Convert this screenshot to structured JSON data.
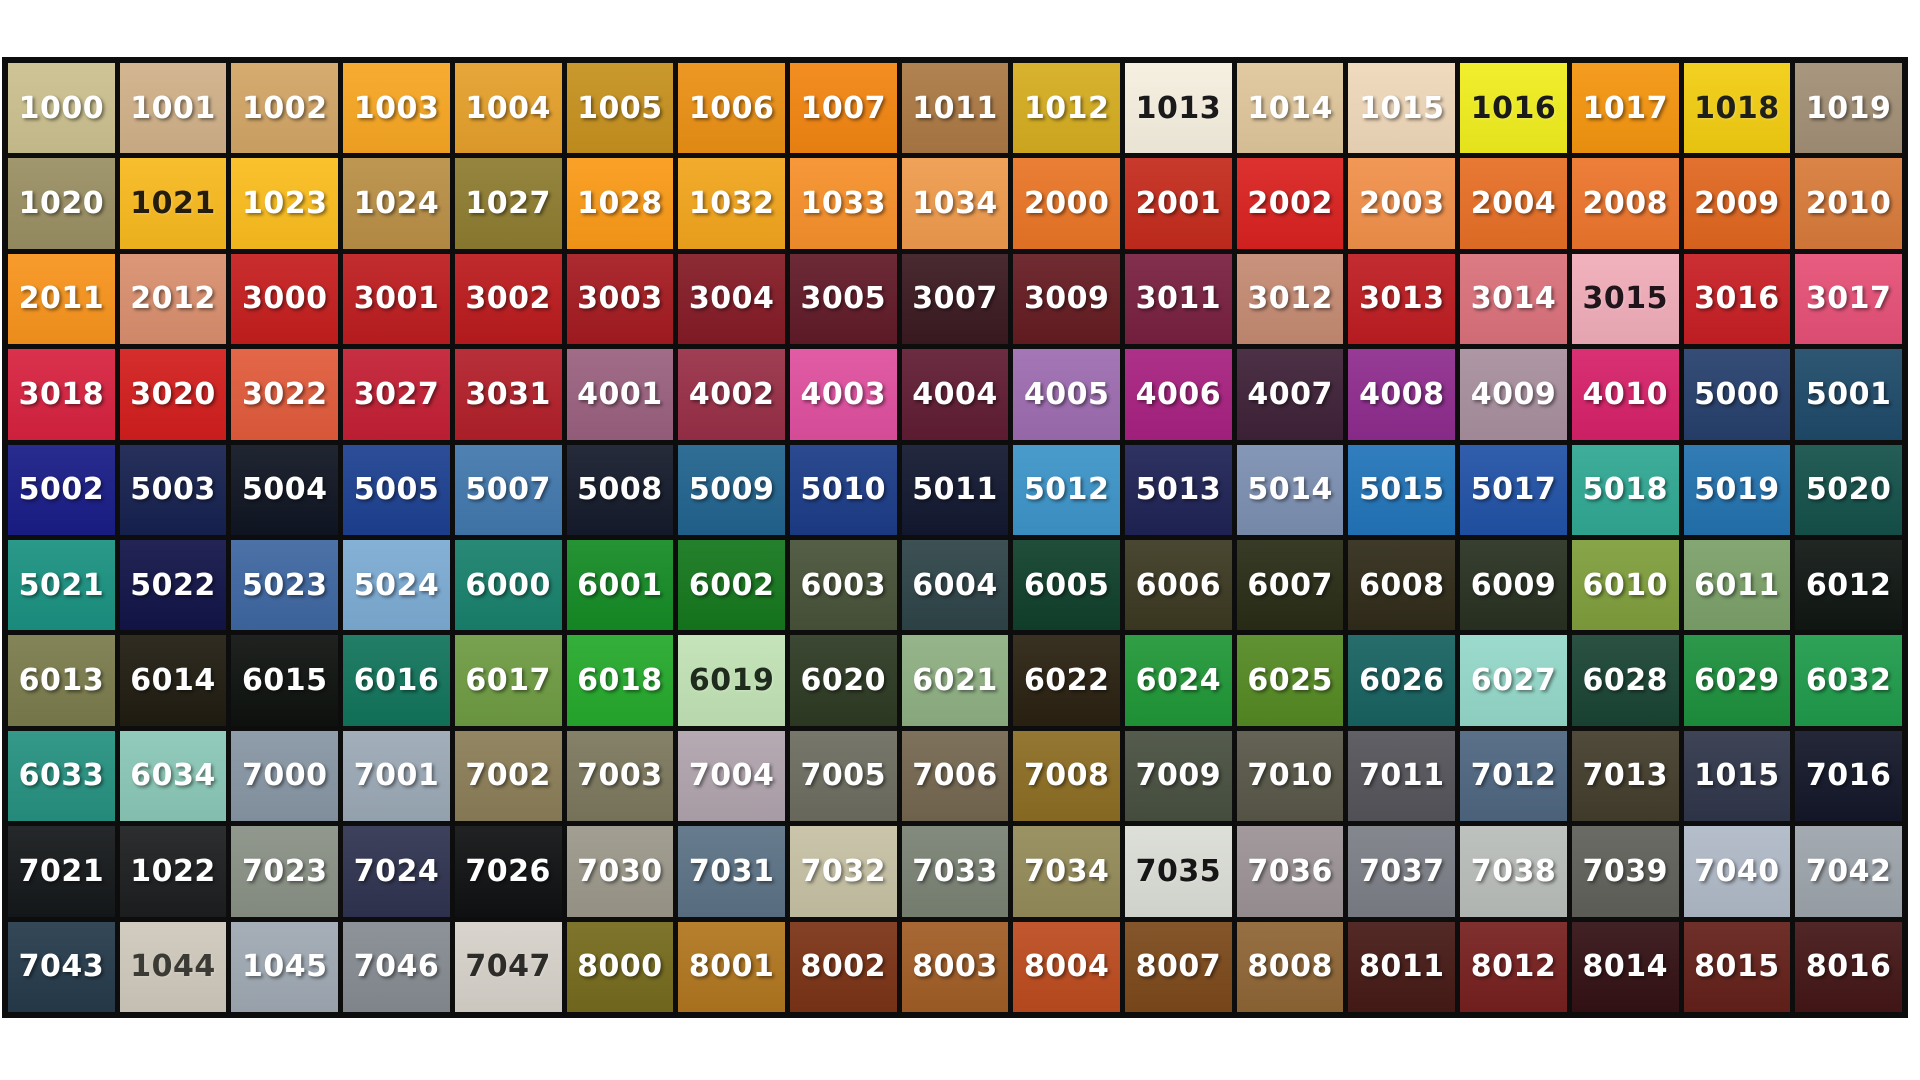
{
  "page": {
    "background_color": "#FFFFFF",
    "frame_color": "#0D0D0D",
    "columns": 17,
    "rows": 10,
    "default_label_color": "#FFFFFF"
  },
  "chart_data": {
    "type": "table",
    "cells": [
      [
        {
          "code": "1000",
          "color": "#CBC08F"
        },
        {
          "code": "1001",
          "color": "#D0B189"
        },
        {
          "code": "1002",
          "color": "#D2A566"
        },
        {
          "code": "1003",
          "color": "#F7A622"
        },
        {
          "code": "1004",
          "color": "#E5A02B"
        },
        {
          "code": "1005",
          "color": "#C6911E"
        },
        {
          "code": "1006",
          "color": "#EB9015"
        },
        {
          "code": "1007",
          "color": "#F28511"
        },
        {
          "code": "1011",
          "color": "#AB7944"
        },
        {
          "code": "1012",
          "color": "#D5AD20"
        },
        {
          "code": "1013",
          "color": "#F5EFDF",
          "fg": "#1A1A1A"
        },
        {
          "code": "1014",
          "color": "#DFC69B"
        },
        {
          "code": "1015",
          "color": "#EFD8BA"
        },
        {
          "code": "1016",
          "color": "#F0EE1E",
          "fg": "#1A1A1A"
        },
        {
          "code": "1017",
          "color": "#F4950F"
        },
        {
          "code": "1018",
          "color": "#F2CD11",
          "fg": "#20201A"
        },
        {
          "code": "1019",
          "color": "#A28F76"
        }
      ],
      [
        {
          "code": "1020",
          "color": "#9A8F63"
        },
        {
          "code": "1021",
          "color": "#F7B91E",
          "fg": "#241C0C"
        },
        {
          "code": "1023",
          "color": "#FBBD1E"
        },
        {
          "code": "1024",
          "color": "#B98F46"
        },
        {
          "code": "1027",
          "color": "#8D7C30"
        },
        {
          "code": "1028",
          "color": "#FA9A17"
        },
        {
          "code": "1032",
          "color": "#F2A51D"
        },
        {
          "code": "1033",
          "color": "#F6902B"
        },
        {
          "code": "1034",
          "color": "#EF9B4D"
        },
        {
          "code": "2000",
          "color": "#E97526"
        },
        {
          "code": "2001",
          "color": "#C42B1D"
        },
        {
          "code": "2002",
          "color": "#DA2220"
        },
        {
          "code": "2003",
          "color": "#F1904A"
        },
        {
          "code": "2004",
          "color": "#E66F26"
        },
        {
          "code": "2008",
          "color": "#EC752C"
        },
        {
          "code": "2009",
          "color": "#E0661F"
        },
        {
          "code": "2010",
          "color": "#D87B3B"
        }
      ],
      [
        {
          "code": "2011",
          "color": "#F7941D"
        },
        {
          "code": "2012",
          "color": "#D98F6E"
        },
        {
          "code": "3000",
          "color": "#C51E1E"
        },
        {
          "code": "3001",
          "color": "#BD1D20"
        },
        {
          "code": "3002",
          "color": "#BB1B1E"
        },
        {
          "code": "3003",
          "color": "#A41B21"
        },
        {
          "code": "3004",
          "color": "#841B26"
        },
        {
          "code": "3005",
          "color": "#611A28"
        },
        {
          "code": "3007",
          "color": "#3B1A21"
        },
        {
          "code": "3009",
          "color": "#651C22"
        },
        {
          "code": "3011",
          "color": "#782040"
        },
        {
          "code": "3012",
          "color": "#C48A72"
        },
        {
          "code": "3013",
          "color": "#BE1D22"
        },
        {
          "code": "3014",
          "color": "#DA717B"
        },
        {
          "code": "3015",
          "color": "#F0ACB9",
          "fg": "#20151A"
        },
        {
          "code": "3016",
          "color": "#C71F24"
        },
        {
          "code": "3017",
          "color": "#E65077"
        }
      ],
      [
        {
          "code": "3018",
          "color": "#D72240"
        },
        {
          "code": "3020",
          "color": "#D21E1D"
        },
        {
          "code": "3022",
          "color": "#E15B3B"
        },
        {
          "code": "3027",
          "color": "#C31F34"
        },
        {
          "code": "3031",
          "color": "#B2202A"
        },
        {
          "code": "4001",
          "color": "#9A617F"
        },
        {
          "code": "4002",
          "color": "#982F47"
        },
        {
          "code": "4003",
          "color": "#DF4F9E"
        },
        {
          "code": "4004",
          "color": "#601C33"
        },
        {
          "code": "4005",
          "color": "#9D6CB0"
        },
        {
          "code": "4006",
          "color": "#A72180"
        },
        {
          "code": "4007",
          "color": "#3F2238"
        },
        {
          "code": "4008",
          "color": "#8E2C8E"
        },
        {
          "code": "4009",
          "color": "#A88F9E"
        },
        {
          "code": "4010",
          "color": "#D62169"
        },
        {
          "code": "5000",
          "color": "#26406C"
        },
        {
          "code": "5001",
          "color": "#1E4A69"
        }
      ],
      [
        {
          "code": "5002",
          "color": "#191C86"
        },
        {
          "code": "5003",
          "color": "#16214F"
        },
        {
          "code": "5004",
          "color": "#101523"
        },
        {
          "code": "5005",
          "color": "#1D4090"
        },
        {
          "code": "5007",
          "color": "#4278AD"
        },
        {
          "code": "5008",
          "color": "#151B2B"
        },
        {
          "code": "5009",
          "color": "#21638E"
        },
        {
          "code": "5010",
          "color": "#1C3C87"
        },
        {
          "code": "5011",
          "color": "#121830"
        },
        {
          "code": "5012",
          "color": "#3C94C8"
        },
        {
          "code": "5013",
          "color": "#1F2355"
        },
        {
          "code": "5014",
          "color": "#7C8FB1"
        },
        {
          "code": "5015",
          "color": "#2274B9"
        },
        {
          "code": "5017",
          "color": "#2152A6"
        },
        {
          "code": "5018",
          "color": "#30A893"
        },
        {
          "code": "5019",
          "color": "#2372AF"
        },
        {
          "code": "5020",
          "color": "#14514A"
        }
      ],
      [
        {
          "code": "5021",
          "color": "#1A9181"
        },
        {
          "code": "5022",
          "color": "#121448"
        },
        {
          "code": "5023",
          "color": "#3E67A1"
        },
        {
          "code": "5024",
          "color": "#7CABD3"
        },
        {
          "code": "6000",
          "color": "#18816C"
        },
        {
          "code": "6001",
          "color": "#158B25"
        },
        {
          "code": "6002",
          "color": "#15771D"
        },
        {
          "code": "6003",
          "color": "#485239"
        },
        {
          "code": "6004",
          "color": "#2E4448"
        },
        {
          "code": "6005",
          "color": "#10402C"
        },
        {
          "code": "6006",
          "color": "#3C3922"
        },
        {
          "code": "6007",
          "color": "#292C16"
        },
        {
          "code": "6008",
          "color": "#302B19"
        },
        {
          "code": "6009",
          "color": "#283121"
        },
        {
          "code": "6010",
          "color": "#7F9E3C"
        },
        {
          "code": "6011",
          "color": "#7BA069"
        },
        {
          "code": "6012",
          "color": "#101713"
        }
      ],
      [
        {
          "code": "6013",
          "color": "#7A7B4C"
        },
        {
          "code": "6014",
          "color": "#201C11"
        },
        {
          "code": "6015",
          "color": "#0E120F"
        },
        {
          "code": "6016",
          "color": "#12745B"
        },
        {
          "code": "6017",
          "color": "#6E9B42"
        },
        {
          "code": "6018",
          "color": "#25A92C"
        },
        {
          "code": "6019",
          "color": "#C2E2B5",
          "fg": "#1F2B1C"
        },
        {
          "code": "6020",
          "color": "#2D3A23"
        },
        {
          "code": "6021",
          "color": "#8EAF82"
        },
        {
          "code": "6022",
          "color": "#2A2111"
        },
        {
          "code": "6024",
          "color": "#209737"
        },
        {
          "code": "6025",
          "color": "#548923"
        },
        {
          "code": "6026",
          "color": "#176261"
        },
        {
          "code": "6027",
          "color": "#94D8C9"
        },
        {
          "code": "6028",
          "color": "#1A4433"
        },
        {
          "code": "6029",
          "color": "#1D903D"
        },
        {
          "code": "6032",
          "color": "#1F9B4B"
        }
      ],
      [
        {
          "code": "6033",
          "color": "#269180"
        },
        {
          "code": "6034",
          "color": "#8AC7B6"
        },
        {
          "code": "7000",
          "color": "#8795A3"
        },
        {
          "code": "7001",
          "color": "#9BA9B6"
        },
        {
          "code": "7002",
          "color": "#8B7D57"
        },
        {
          "code": "7003",
          "color": "#7C785E"
        },
        {
          "code": "7004",
          "color": "#B0A3AD"
        },
        {
          "code": "7005",
          "color": "#6C6C60"
        },
        {
          "code": "7006",
          "color": "#746750"
        },
        {
          "code": "7008",
          "color": "#8C6D23"
        },
        {
          "code": "7009",
          "color": "#485040"
        },
        {
          "code": "7010",
          "color": "#585748"
        },
        {
          "code": "7011",
          "color": "#54545A"
        },
        {
          "code": "7012",
          "color": "#4E6680"
        },
        {
          "code": "7013",
          "color": "#433D2C"
        },
        {
          "code": "1015",
          "color": "#30364A"
        },
        {
          "code": "7016",
          "color": "#131729"
        }
      ],
      [
        {
          "code": "7021",
          "color": "#15181A"
        },
        {
          "code": "1022",
          "color": "#1C1E20"
        },
        {
          "code": "7023",
          "color": "#899084"
        },
        {
          "code": "7024",
          "color": "#2F3350"
        },
        {
          "code": "7026",
          "color": "#0F1112"
        },
        {
          "code": "7030",
          "color": "#9B988A"
        },
        {
          "code": "7031",
          "color": "#5B7285"
        },
        {
          "code": "7032",
          "color": "#C6C1A4"
        },
        {
          "code": "7033",
          "color": "#7A8274"
        },
        {
          "code": "7034",
          "color": "#948B59"
        },
        {
          "code": "7035",
          "color": "#DADDD5",
          "fg": "#161616"
        },
        {
          "code": "7036",
          "color": "#9B9295"
        },
        {
          "code": "7037",
          "color": "#7B7E86"
        },
        {
          "code": "7038",
          "color": "#B9BDB9"
        },
        {
          "code": "7039",
          "color": "#60605A"
        },
        {
          "code": "7040",
          "color": "#AFB9C6"
        },
        {
          "code": "7042",
          "color": "#9CA4AB"
        }
      ],
      [
        {
          "code": "7043",
          "color": "#253A4B"
        },
        {
          "code": "1044",
          "color": "#CFC8BC",
          "fg": "#3C3A34"
        },
        {
          "code": "1045",
          "color": "#9FA9B3"
        },
        {
          "code": "7046",
          "color": "#858B91"
        },
        {
          "code": "7047",
          "color": "#D6D1C9",
          "fg": "#2E2C28"
        },
        {
          "code": "8000",
          "color": "#756A1D"
        },
        {
          "code": "8001",
          "color": "#B0761F"
        },
        {
          "code": "8002",
          "color": "#7B3316"
        },
        {
          "code": "8003",
          "color": "#A15D26"
        },
        {
          "code": "8004",
          "color": "#BC4B1F"
        },
        {
          "code": "8007",
          "color": "#7C491B"
        },
        {
          "code": "8008",
          "color": "#8E6535"
        },
        {
          "code": "8011",
          "color": "#461A16"
        },
        {
          "code": "8012",
          "color": "#76201F"
        },
        {
          "code": "8014",
          "color": "#331114"
        },
        {
          "code": "8015",
          "color": "#64201A"
        },
        {
          "code": "8016",
          "color": "#441616"
        }
      ]
    ]
  }
}
